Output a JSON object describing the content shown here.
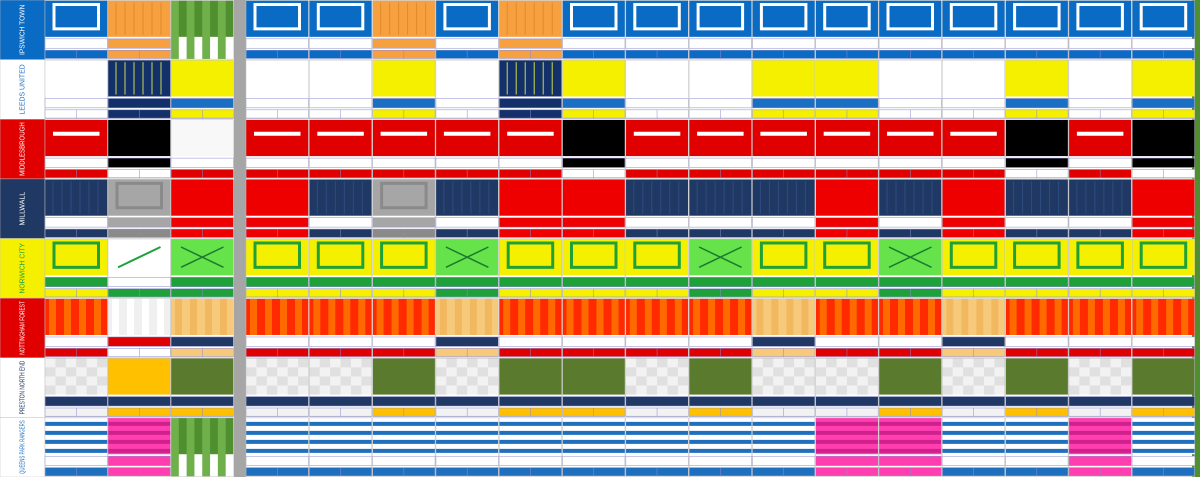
{
  "teams": [
    "IPSWICH TOWN",
    "LEEDS UNITED",
    "MIDDLESBROUGH",
    "MILLWALL",
    "NORWICH CITY",
    "NOTTINGHAM FOREST",
    "PRESTON NORTH END",
    "QUEENS PARK RANGERS"
  ]
}
